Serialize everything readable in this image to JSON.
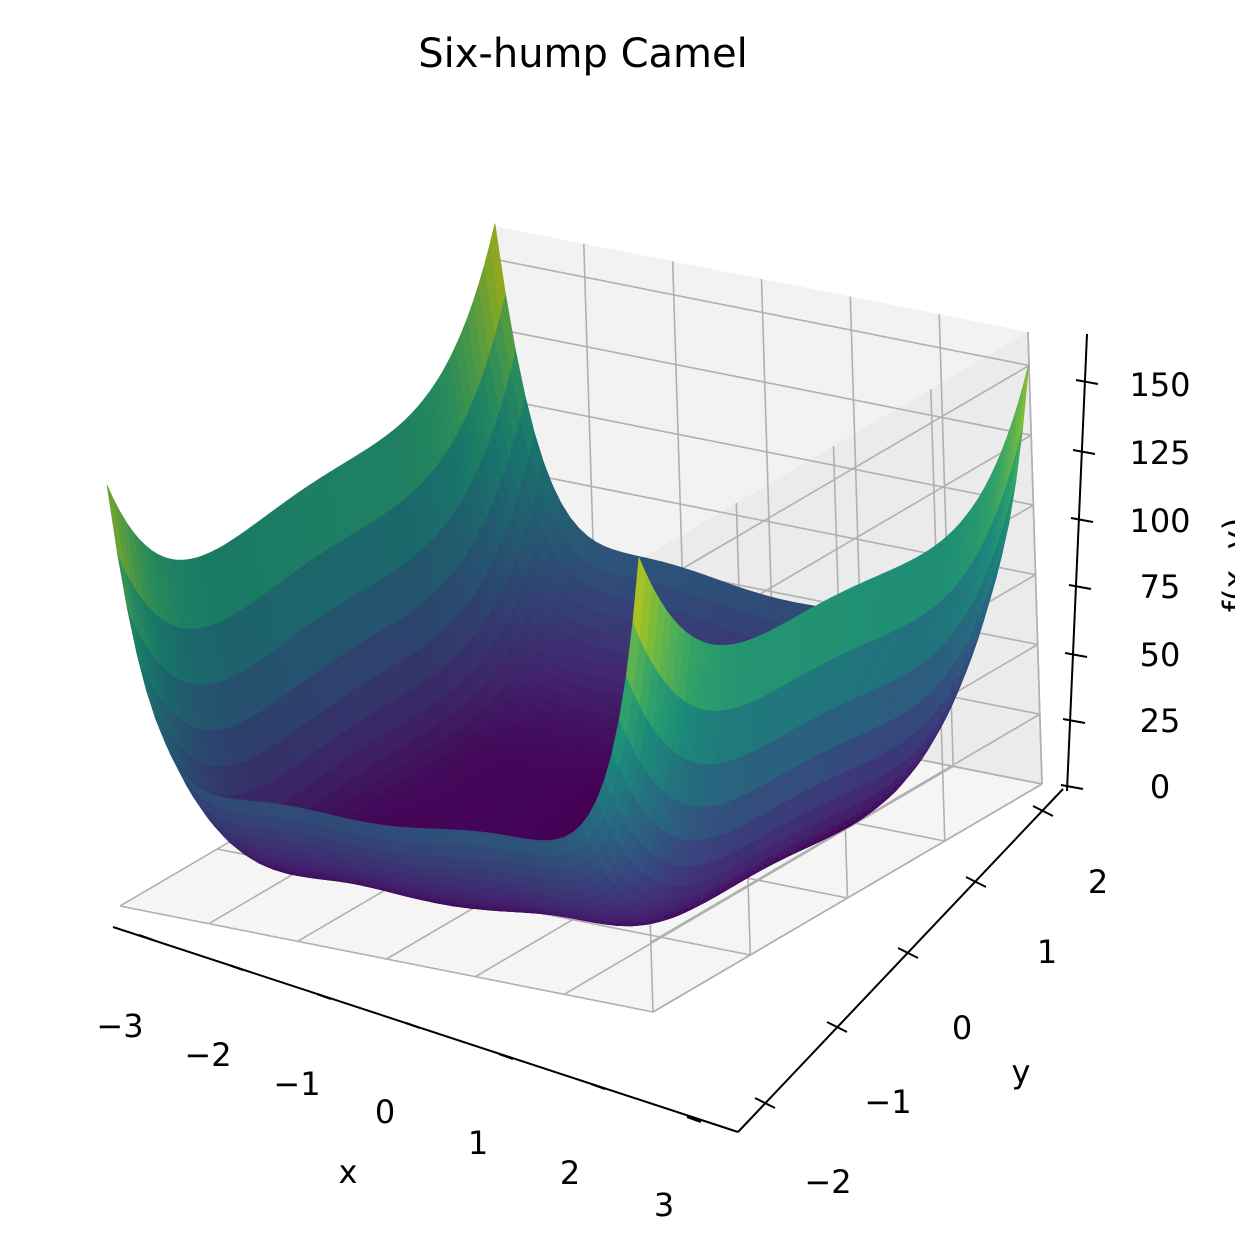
{
  "chart_data": {
    "type": "surface3d",
    "title": "Six-hump Camel",
    "xlabel": "x",
    "ylabel": "y",
    "zlabel": "f(x, y)",
    "function": "f(x,y) = (4 - 2.1x^2 + x^4/3)x^2 + xy + (-4 + 4y^2)y^2",
    "xlim": [
      -3,
      3
    ],
    "ylim": [
      -2,
      2
    ],
    "zlim": [
      0,
      162
    ],
    "x_ticks": [
      "−3",
      "−2",
      "−1",
      "0",
      "1",
      "2",
      "3"
    ],
    "y_ticks": [
      "−2",
      "−1",
      "0",
      "1",
      "2"
    ],
    "z_ticks": [
      "0",
      "25",
      "50",
      "75",
      "100",
      "125",
      "150"
    ],
    "z_max_value": 162.9,
    "colormap": "viridis",
    "colors": {
      "low": "#440154",
      "high": "#fde725",
      "pane_back": "#f2f2f2",
      "pane_side": "#ebebeb",
      "pane_floor": "#f5f5f5",
      "grid": "#b0b0b0"
    },
    "grid": true
  }
}
